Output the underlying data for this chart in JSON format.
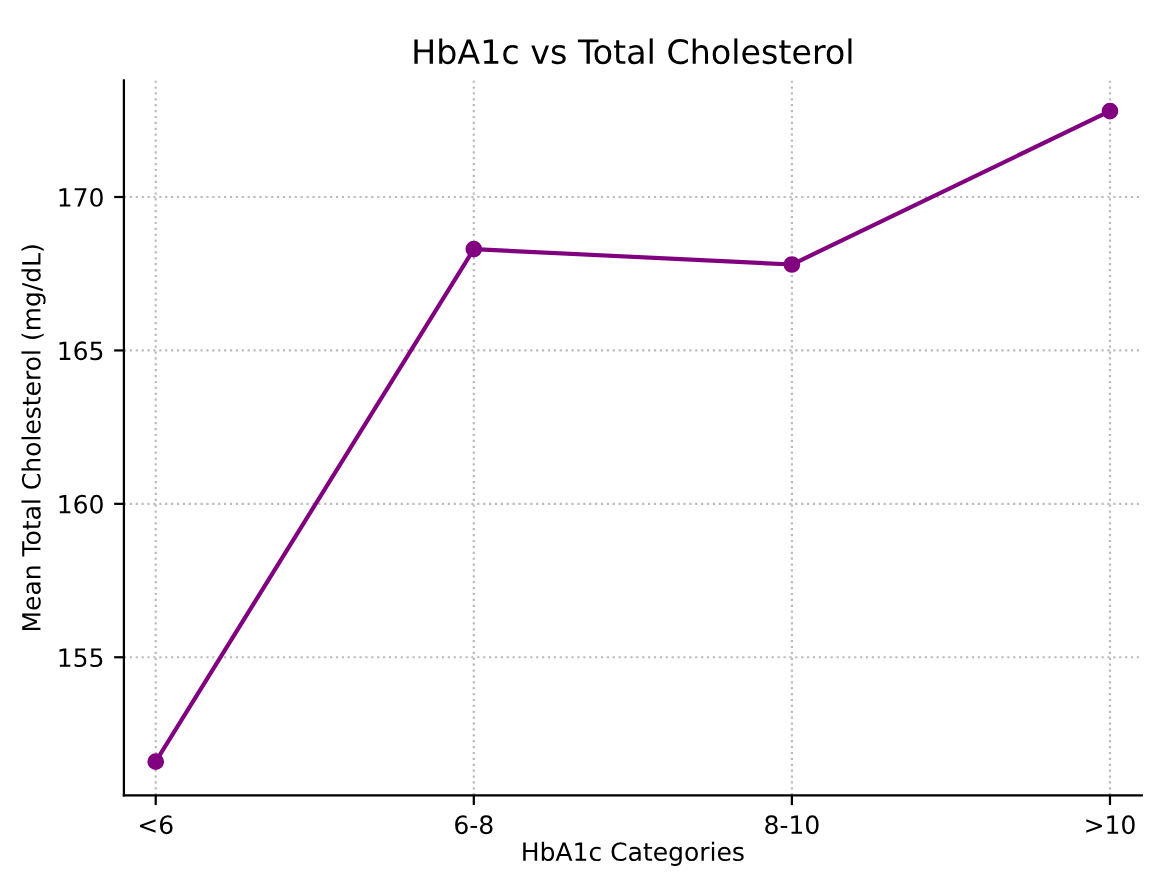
{
  "chart_data": {
    "type": "line",
    "title": "HbA1c vs Total Cholesterol",
    "xlabel": "HbA1c Categories",
    "ylabel": "Mean Total Cholesterol (mg/dL)",
    "categories": [
      "<6",
      "6-8",
      "8-10",
      ">10"
    ],
    "series": [
      {
        "color": "#800080",
        "values": [
          151.6,
          168.3,
          167.8,
          172.8
        ]
      }
    ],
    "ylim": [
      150.5,
      173.8
    ],
    "yticks": [
      155,
      160,
      165,
      170
    ],
    "grid": true,
    "marker": "circle",
    "line_style": "solid"
  }
}
